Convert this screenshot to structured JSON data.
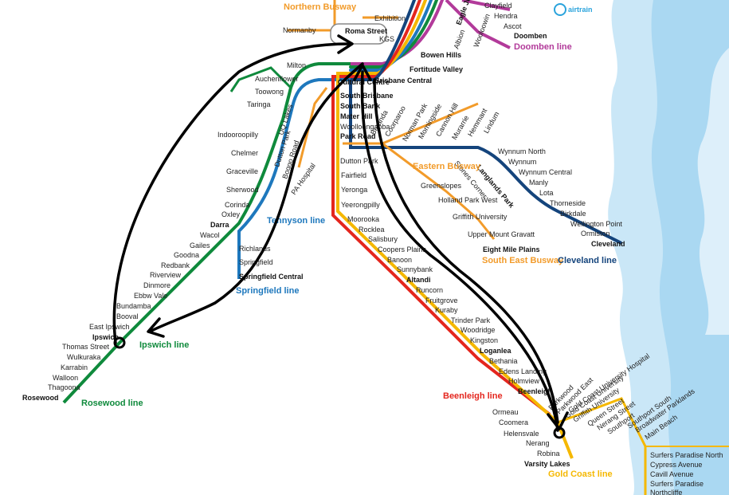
{
  "brand": "airtrain",
  "colors": {
    "ipswich": "#0f8a3c",
    "springfield": "#1e78bd",
    "beenleigh": "#e4261e",
    "goldcoast": "#f5b800",
    "cleveland": "#14447c",
    "doomben": "#b23a9a",
    "busway": "#f29b2a",
    "sea": "#9fd3f0",
    "annotation": "#000000"
  },
  "line_labels": {
    "northern_busway": "Northern Busway",
    "doomben": "Doomben line",
    "eastern_busway": "Eastern Busway",
    "south_east_busway": "South East Busway",
    "cleveland": "Cleveland line",
    "tennyson": "Tennyson line",
    "springfield": "Springfield line",
    "ipswich": "Ipswich line",
    "rosewood": "Rosewood line",
    "beenleigh": "Beenleigh line",
    "goldcoast": "Gold Coast line"
  },
  "stations": {
    "north": [
      "Exhibition",
      "Normanby",
      "Roma Street",
      "KGS",
      "Bowen Hills",
      "Fortitude Valley",
      "Eagle Junction",
      "Wooloowin",
      "Albion",
      "Clayfield",
      "Hendra",
      "Ascot",
      "Doomben"
    ],
    "city": [
      "Cultural Centre",
      "Brisbane Central",
      "South Brisbane",
      "South Bank",
      "Mater Hill",
      "Woolloongabba",
      "Park Road",
      "Dutton Park",
      "Fairfield",
      "Yeronga",
      "Yeerongpilly",
      "Moorooka",
      "Rocklea",
      "Salisbury",
      "Coopers Plains",
      "Banoon",
      "Sunnybank",
      "Altandi",
      "Runcorn",
      "Fruitgrove",
      "Kuraby"
    ],
    "cleveland": [
      "Wynnum North",
      "Wynnum",
      "Wynnum Central",
      "Manly",
      "Lota",
      "Thorneside",
      "Birkdale",
      "Wellington Point",
      "Ormiston",
      "Cleveland"
    ],
    "eastern_busway": [
      "Buranda",
      "Coorparoo",
      "Norman Park",
      "Morningside",
      "Cannon Hill",
      "Murarrie",
      "Hemmant",
      "Lindum",
      "Stones Corner",
      "Langlands Park",
      "Greenslopes",
      "Holland Park West",
      "Griffith University",
      "Upper Mount Gravatt",
      "Eight Mile Plains"
    ],
    "ipswich": [
      "Milton",
      "Auchenflower",
      "Toowong",
      "Taringa",
      "Indooroopilly",
      "Chelmer",
      "Graceville",
      "Sherwood",
      "Corinda",
      "Oxley",
      "Darra",
      "Wacol",
      "Gailes",
      "Goodna",
      "Redbank",
      "Riverview",
      "Dinmore",
      "Ebbw Vale",
      "Bundamba",
      "Booval",
      "East Ipswich",
      "Ipswich",
      "Thomas Street",
      "Wulkuraka",
      "Karrabin",
      "Walloon",
      "Thagoona",
      "Rosewood"
    ],
    "busway_west": [
      "UQ Lakes",
      "Dutton Park",
      "Boggo Road",
      "PA Hospital"
    ],
    "springfield": [
      "Richlands",
      "Springfield",
      "Springfield Central"
    ],
    "beenleigh": [
      "Trinder Park",
      "Woodridge",
      "Kingston",
      "Loganlea",
      "Bethania",
      "Edens Landing",
      "Holmview",
      "Beenleigh"
    ],
    "goldcoast": [
      "Ormeau",
      "Coomera",
      "Helensvale",
      "Nerang",
      "Robina",
      "Varsity Lakes"
    ],
    "glink": [
      "Parkwood",
      "Parkwood East",
      "Gold Coast University",
      "Griffith University",
      "Gold Coast University Hospital",
      "Queen Street",
      "Nerang Street",
      "Southport",
      "Southport South",
      "Broadwater Parklands",
      "Main Beach",
      "Surfers Paradise North",
      "Cypress Avenue",
      "Cavill Avenue",
      "Surfers Paradise",
      "Northcliffe"
    ]
  }
}
